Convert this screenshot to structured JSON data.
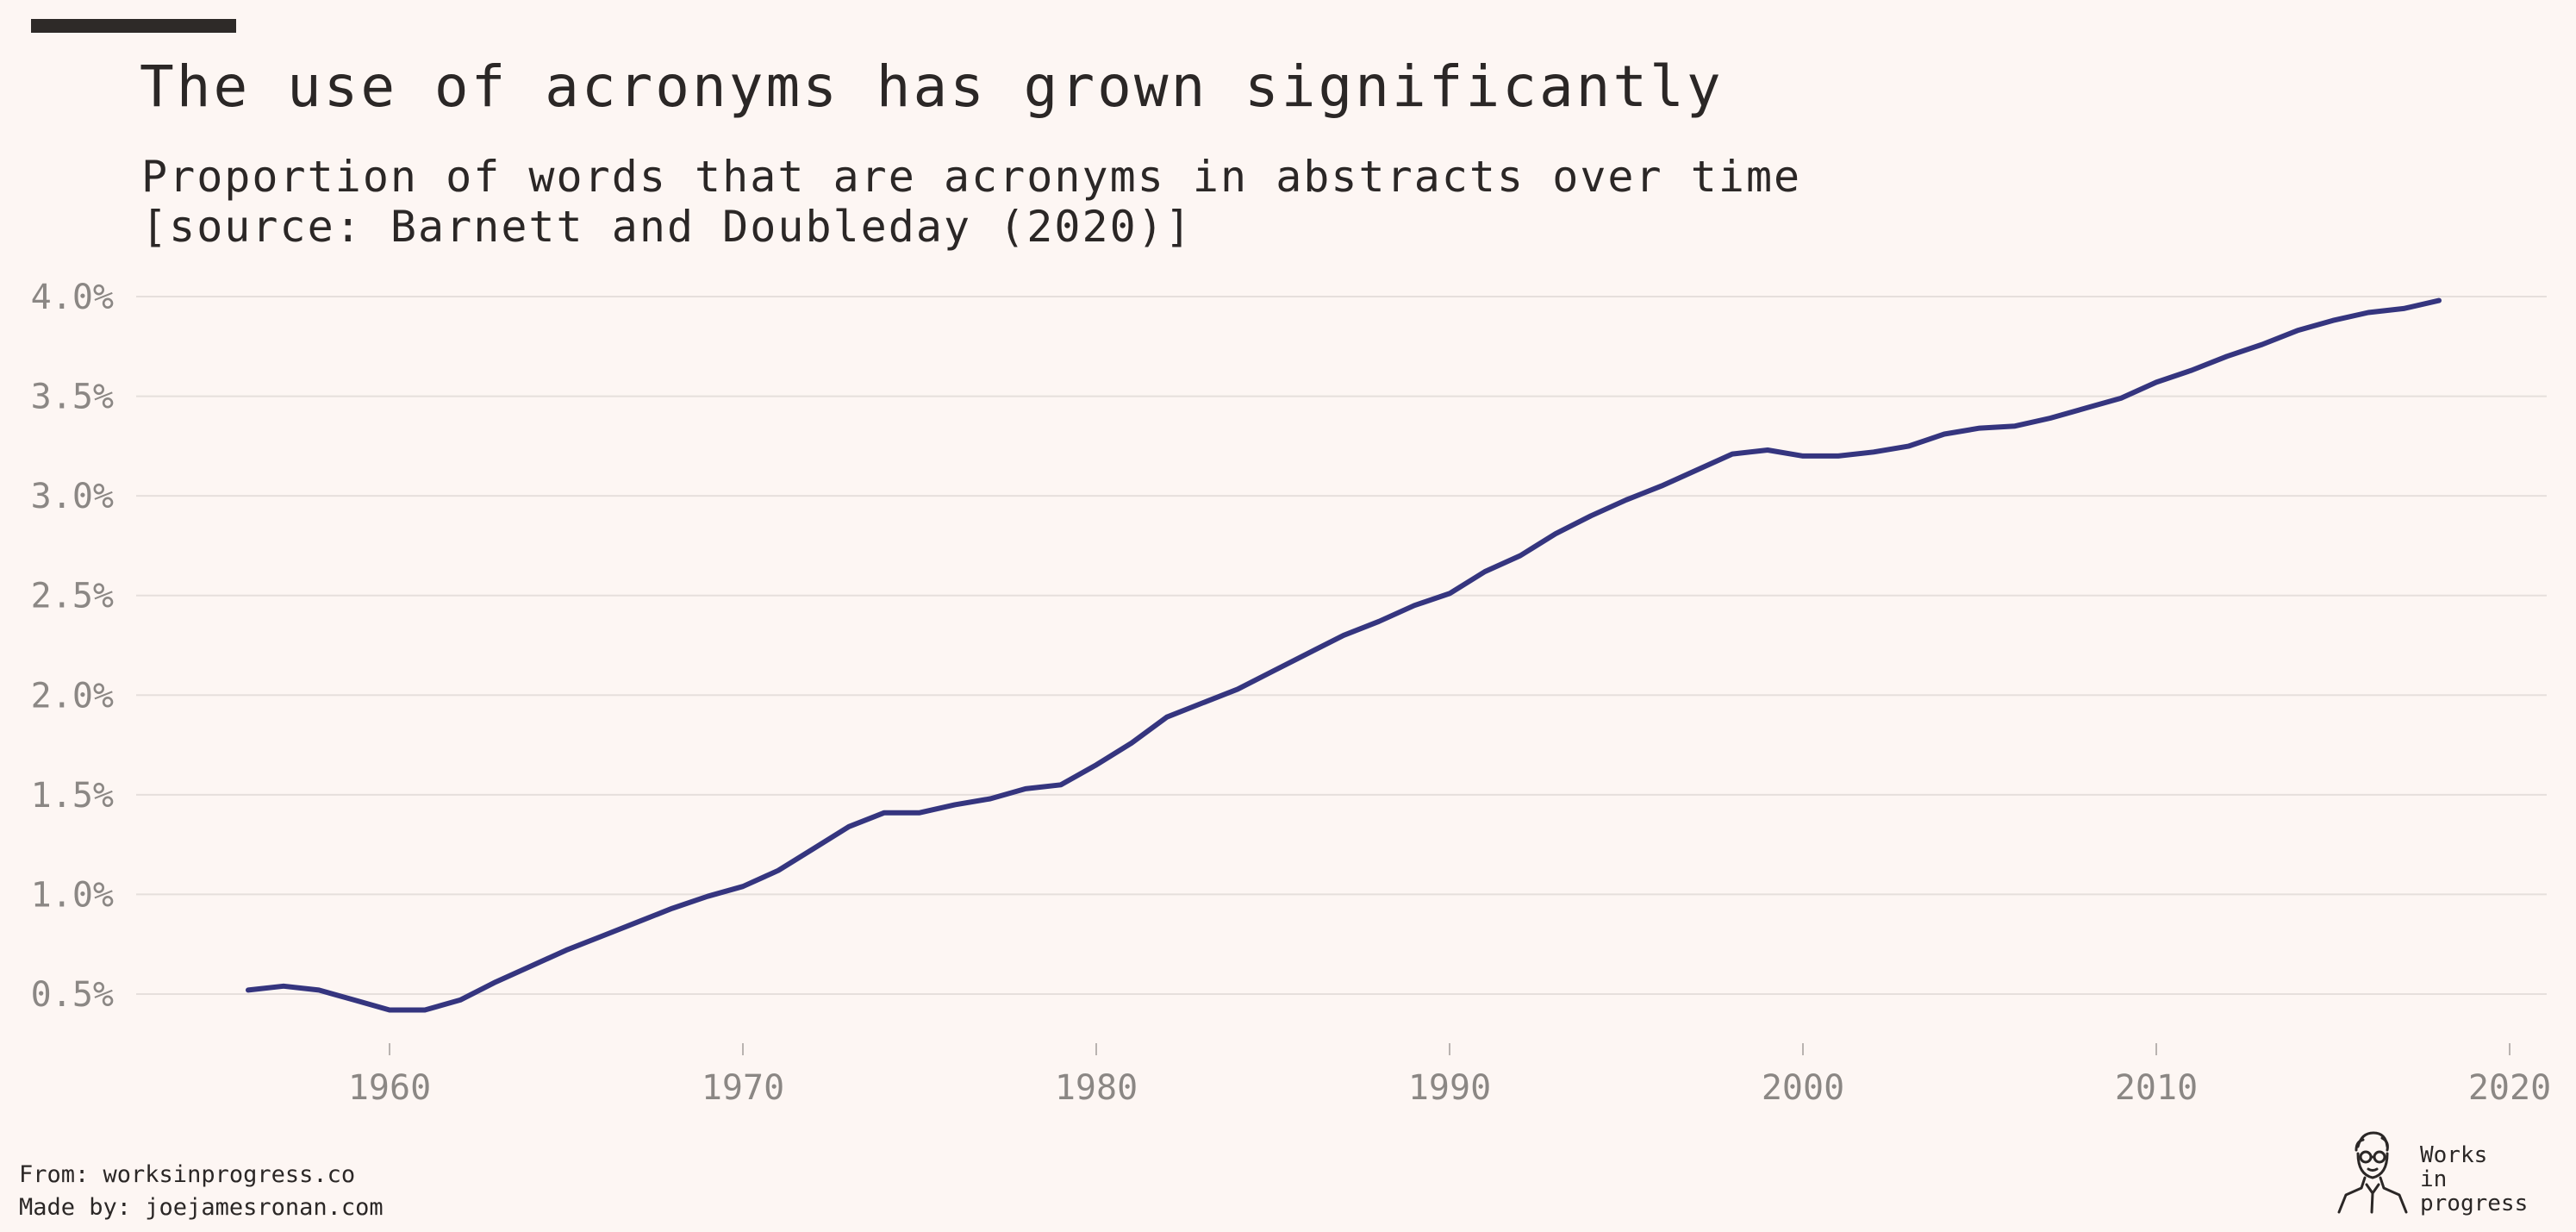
{
  "header": {
    "title": "The use of acronyms has grown significantly",
    "subtitle_line1": "Proportion of words that are acronyms in abstracts over time",
    "subtitle_line2": "[source: Barnett and Doubleday (2020)]"
  },
  "footer": {
    "from": "From: worksinprogress.co",
    "made_by": "Made by: joejamesronan.com"
  },
  "brand": {
    "line1": "Works",
    "line2": "in",
    "line3": "progress",
    "icon": "caricature-portrait-icon"
  },
  "colors": {
    "background": "#fdf6f3",
    "line": "#35357f",
    "grid": "#e6dfdc",
    "tick_text": "#8b8784",
    "text": "#2b2726"
  },
  "chart_data": {
    "type": "line",
    "title": "The use of acronyms has grown significantly",
    "subtitle": "Proportion of words that are acronyms in abstracts over time [source: Barnett and Doubleday (2020)]",
    "xlabel": "",
    "ylabel": "",
    "xlim": [
      1953,
      2021
    ],
    "ylim": [
      0.3,
      4.1
    ],
    "x_ticks": [
      1960,
      1970,
      1980,
      1990,
      2000,
      2010,
      2020
    ],
    "y_ticks": [
      0.5,
      1.0,
      1.5,
      2.0,
      2.5,
      3.0,
      3.5,
      4.0
    ],
    "y_tick_labels": [
      "0.5%",
      "1.0%",
      "1.5%",
      "2.0%",
      "2.5%",
      "3.0%",
      "3.5%",
      "4.0%"
    ],
    "grid": "horizontal",
    "legend": "none",
    "x": [
      1956,
      1957,
      1958,
      1959,
      1960,
      1961,
      1962,
      1963,
      1964,
      1965,
      1966,
      1967,
      1968,
      1969,
      1970,
      1971,
      1972,
      1973,
      1974,
      1975,
      1976,
      1977,
      1978,
      1979,
      1980,
      1981,
      1982,
      1983,
      1984,
      1985,
      1986,
      1987,
      1988,
      1989,
      1990,
      1991,
      1992,
      1993,
      1994,
      1995,
      1996,
      1997,
      1998,
      1999,
      2000,
      2001,
      2002,
      2003,
      2004,
      2005,
      2006,
      2007,
      2008,
      2009,
      2010,
      2011,
      2012,
      2013,
      2014,
      2015,
      2016,
      2017,
      2018
    ],
    "y": [
      0.52,
      0.54,
      0.52,
      0.47,
      0.42,
      0.42,
      0.47,
      0.56,
      0.64,
      0.72,
      0.79,
      0.86,
      0.93,
      0.99,
      1.04,
      1.12,
      1.23,
      1.34,
      1.41,
      1.41,
      1.45,
      1.48,
      1.53,
      1.55,
      1.65,
      1.76,
      1.89,
      1.96,
      2.03,
      2.12,
      2.21,
      2.3,
      2.37,
      2.45,
      2.51,
      2.62,
      2.7,
      2.81,
      2.9,
      2.98,
      3.05,
      3.13,
      3.21,
      3.23,
      3.2,
      3.2,
      3.22,
      3.25,
      3.31,
      3.34,
      3.35,
      3.39,
      3.44,
      3.49,
      3.57,
      3.63,
      3.7,
      3.76,
      3.83,
      3.88,
      3.92,
      3.94,
      3.98
    ]
  }
}
